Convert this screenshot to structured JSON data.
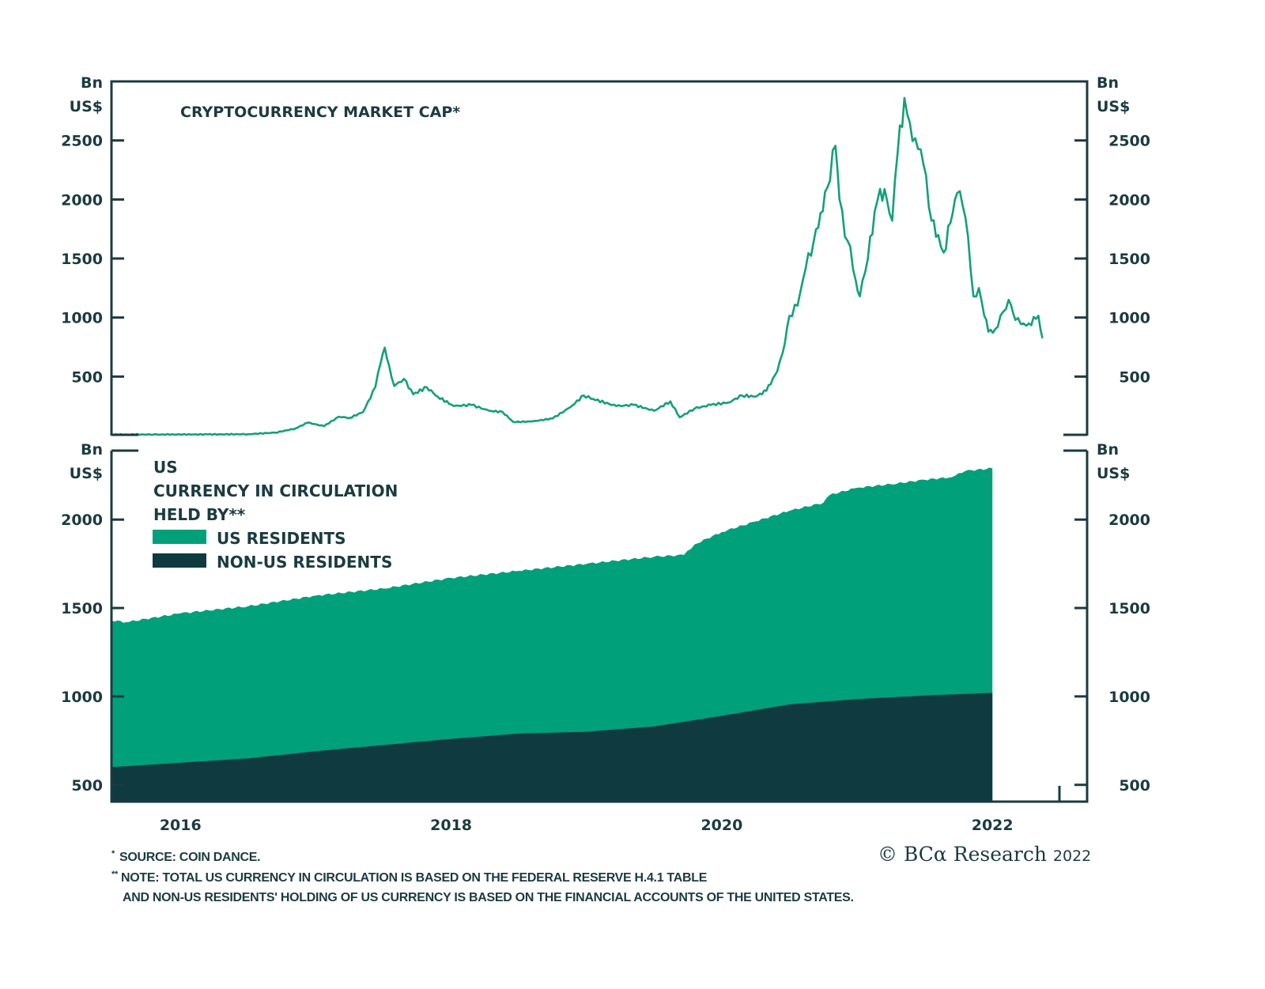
{
  "colors": {
    "line": "#13a07a",
    "us_residents": "#00a07a",
    "non_us_residents": "#0e3a40",
    "axis": "#1b3b40",
    "text": "#1b3b40"
  },
  "chart_data": [
    {
      "type": "line",
      "title": "CRYPTOCURRENCY MARKET CAP*",
      "ylabel": "Bn US$",
      "ylabel_lines": [
        "Bn",
        "US$"
      ],
      "ylim": [
        0,
        3000
      ],
      "yticks": [
        500,
        1000,
        1500,
        2000,
        2500
      ],
      "ytick_labels": [
        "500",
        "1000",
        "1500",
        "2000",
        "2500"
      ],
      "xlim": [
        2015.49,
        2022.7
      ],
      "grid": false,
      "series": [
        {
          "name": "Cryptocurrency market cap",
          "x": [
            2015.49,
            2015.8,
            2016.2,
            2016.5,
            2016.7,
            2016.85,
            2016.94,
            2017.06,
            2017.17,
            2017.25,
            2017.35,
            2017.44,
            2017.48,
            2017.51,
            2017.54,
            2017.58,
            2017.65,
            2017.72,
            2017.82,
            2017.9,
            2018.02,
            2018.15,
            2018.28,
            2018.38,
            2018.46,
            2018.6,
            2018.75,
            2018.88,
            2018.98,
            2019.05,
            2019.22,
            2019.35,
            2019.5,
            2019.62,
            2019.69,
            2019.8,
            2019.92,
            2020.05,
            2020.15,
            2020.25,
            2020.33,
            2020.41,
            2020.45,
            2020.5,
            2020.56,
            2020.62,
            2020.68,
            2020.73,
            2020.78,
            2020.84,
            2020.87,
            2020.91,
            2020.95,
            2020.99,
            2021.02,
            2021.08,
            2021.13,
            2021.17,
            2021.22,
            2021.26,
            2021.3,
            2021.35,
            2021.39,
            2021.43,
            2021.49,
            2021.55,
            2021.6,
            2021.64,
            2021.69,
            2021.74,
            2021.78,
            2021.82,
            2021.86,
            2021.9,
            2021.94,
            2021.97,
            2022.02,
            2022.08,
            2022.12,
            2022.17,
            2022.21,
            2022.27,
            2022.34,
            2022.37
          ],
          "y": [
            8,
            9,
            10,
            12,
            25,
            60,
            110,
            80,
            160,
            150,
            200,
            410,
            620,
            745,
            600,
            420,
            480,
            350,
            410,
            330,
            250,
            260,
            210,
            200,
            115,
            120,
            145,
            240,
            340,
            310,
            250,
            260,
            210,
            290,
            155,
            230,
            260,
            280,
            340,
            330,
            380,
            545,
            700,
            1015,
            1100,
            1415,
            1650,
            1885,
            2100,
            2455,
            2000,
            1685,
            1600,
            1315,
            1180,
            1500,
            1900,
            2090,
            2000,
            1820,
            2400,
            2860,
            2650,
            2520,
            2300,
            1820,
            1700,
            1550,
            1800,
            2055,
            1950,
            1685,
            1180,
            1250,
            1015,
            880,
            900,
            1050,
            1150,
            980,
            945,
            950,
            1015,
            825
          ]
        }
      ]
    },
    {
      "type": "area",
      "title": "US CURRENCY IN CIRCULATION HELD BY**",
      "title_lines": [
        "US",
        "CURRENCY IN CIRCULATION",
        "HELD BY**"
      ],
      "ylabel": "Bn US$",
      "ylabel_lines": [
        "Bn",
        "US$"
      ],
      "ylim": [
        405,
        2390
      ],
      "yticks": [
        500,
        1000,
        1500,
        2000
      ],
      "ytick_labels": [
        "500",
        "1000",
        "1500",
        "2000"
      ],
      "xlim": [
        2015.49,
        2022.7
      ],
      "xticks": [
        2016,
        2018,
        2020,
        2022
      ],
      "xtick_labels": [
        "2016",
        "2018",
        "2020",
        "2022"
      ],
      "grid": false,
      "legend": {
        "placement": "top-left",
        "entries": [
          "US RESIDENTS",
          "NON-US RESIDENTS"
        ]
      },
      "stacked": true,
      "series": [
        {
          "name": "NON-US RESIDENTS",
          "x": [
            2015.49,
            2016.0,
            2016.5,
            2017.0,
            2017.5,
            2018.0,
            2018.5,
            2019.0,
            2019.5,
            2020.0,
            2020.5,
            2021.0,
            2021.5,
            2022.0
          ],
          "y": [
            600,
            625,
            650,
            690,
            725,
            760,
            790,
            800,
            830,
            890,
            955,
            985,
            1005,
            1020
          ]
        },
        {
          "name": "US RESIDENTS + NON-US (TOTAL)",
          "x": [
            2015.49,
            2015.6,
            2016.0,
            2016.5,
            2017.0,
            2017.5,
            2018.0,
            2018.5,
            2019.0,
            2019.5,
            2019.72,
            2019.8,
            2020.0,
            2020.25,
            2020.5,
            2020.75,
            2020.8,
            2021.0,
            2021.25,
            2021.5,
            2021.7,
            2021.8,
            2022.0
          ],
          "y": [
            1430,
            1420,
            1470,
            1510,
            1570,
            1610,
            1670,
            1710,
            1750,
            1790,
            1800,
            1860,
            1930,
            1990,
            2050,
            2095,
            2140,
            2180,
            2200,
            2225,
            2240,
            2275,
            2290
          ]
        }
      ]
    }
  ],
  "footnotes": {
    "note1_marker": "*",
    "note1": "SOURCE: COIN DANCE.",
    "note2_marker": "**",
    "note2_line1": "NOTE: TOTAL US CURRENCY IN CIRCULATION IS BASED ON THE FEDERAL RESERVE H.4.1 TABLE",
    "note2_line2": "AND NON-US RESIDENTS' HOLDING OF US CURRENCY IS BASED ON THE FINANCIAL ACCOUNTS OF THE UNITED STATES."
  },
  "branding": {
    "copyright_symbol": "©",
    "brand": "BCα Research",
    "year": "2022"
  }
}
